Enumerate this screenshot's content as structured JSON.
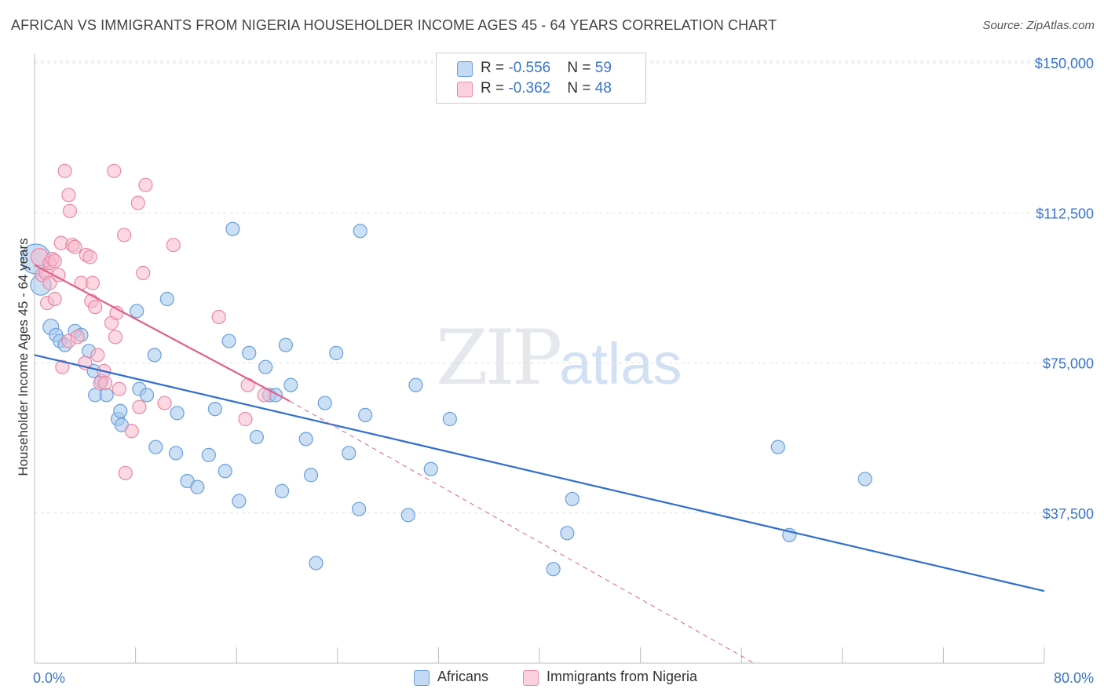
{
  "header": {
    "title": "AFRICAN VS IMMIGRANTS FROM NIGERIA HOUSEHOLDER INCOME AGES 45 - 64 YEARS CORRELATION CHART",
    "source": "Source: ZipAtlas.com"
  },
  "watermark": {
    "zip": "ZIP",
    "atlas": "atlas"
  },
  "legend": {
    "africans": {
      "r_label": "R = ",
      "r_value": "-0.556",
      "n_label": "N = ",
      "n_value": "59"
    },
    "nigeria": {
      "r_label": "R = ",
      "r_value": "-0.362",
      "n_label": "N = ",
      "n_value": "48"
    }
  },
  "bottom_legend": {
    "africans": "Africans",
    "nigeria": "Immigrants from Nigeria"
  },
  "colors": {
    "africans_fill": "#a9c9ef",
    "africans_stroke": "#6a9fdc",
    "africans_line": "#2f6fcc",
    "nigeria_fill": "#f7b8cb",
    "nigeria_stroke": "#e88aa6",
    "nigeria_line": "#e0608a",
    "axis_label": "#3a74c8",
    "grid": "#dde1e6"
  },
  "chart_data": {
    "type": "scatter",
    "title": "AFRICAN VS IMMIGRANTS FROM NIGERIA HOUSEHOLDER INCOME AGES 45 - 64 YEARS CORRELATION CHART",
    "xlabel": "",
    "ylabel": "Householder Income Ages 45 - 64 years",
    "xlim": [
      0,
      80
    ],
    "ylim": [
      0,
      152000
    ],
    "x_tick_labels": [
      "0.0%",
      "80.0%"
    ],
    "y_ticks": [
      37500,
      75000,
      112500,
      150000
    ],
    "y_tick_labels": [
      "$37,500",
      "$75,000",
      "$112,500",
      "$150,000"
    ],
    "grid": true,
    "legend_position": "top-center",
    "series": [
      {
        "name": "Africans",
        "r": -0.556,
        "n": 59,
        "points": [
          [
            0.1,
            101000
          ],
          [
            0.5,
            94500
          ],
          [
            1.3,
            84000
          ],
          [
            1.7,
            82000
          ],
          [
            2.0,
            80500
          ],
          [
            2.4,
            79500
          ],
          [
            3.2,
            83000
          ],
          [
            3.7,
            82000
          ],
          [
            4.3,
            78000
          ],
          [
            4.7,
            73000
          ],
          [
            4.8,
            67000
          ],
          [
            5.3,
            70500
          ],
          [
            5.7,
            67000
          ],
          [
            6.6,
            61000
          ],
          [
            6.9,
            59500
          ],
          [
            6.8,
            63000
          ],
          [
            8.1,
            88000
          ],
          [
            8.3,
            68500
          ],
          [
            8.9,
            67000
          ],
          [
            9.5,
            77000
          ],
          [
            9.6,
            54000
          ],
          [
            10.5,
            91000
          ],
          [
            11.3,
            62500
          ],
          [
            11.2,
            52500
          ],
          [
            12.1,
            45500
          ],
          [
            12.9,
            44000
          ],
          [
            13.8,
            52000
          ],
          [
            14.3,
            63500
          ],
          [
            15.1,
            48000
          ],
          [
            15.4,
            80500
          ],
          [
            16.2,
            40500
          ],
          [
            15.7,
            108500
          ],
          [
            17.0,
            77500
          ],
          [
            17.6,
            56500
          ],
          [
            18.3,
            74000
          ],
          [
            18.6,
            67000
          ],
          [
            19.1,
            67000
          ],
          [
            19.6,
            43000
          ],
          [
            19.9,
            79500
          ],
          [
            20.3,
            69500
          ],
          [
            21.5,
            56000
          ],
          [
            21.9,
            47000
          ],
          [
            22.3,
            25000
          ],
          [
            23.0,
            65000
          ],
          [
            23.9,
            77500
          ],
          [
            24.9,
            52500
          ],
          [
            25.7,
            38500
          ],
          [
            25.8,
            108000
          ],
          [
            26.2,
            62000
          ],
          [
            29.6,
            37000
          ],
          [
            30.2,
            69500
          ],
          [
            31.4,
            48500
          ],
          [
            32.9,
            61000
          ],
          [
            41.1,
            23500
          ],
          [
            42.2,
            32500
          ],
          [
            42.6,
            41000
          ],
          [
            58.9,
            54000
          ],
          [
            59.8,
            32000
          ],
          [
            65.8,
            46000
          ]
        ]
      },
      {
        "name": "Immigrants from Nigeria",
        "r": -0.362,
        "n": 48,
        "points": [
          [
            0.4,
            101500
          ],
          [
            0.6,
            97000
          ],
          [
            0.9,
            97500
          ],
          [
            1.0,
            90000
          ],
          [
            1.2,
            95000
          ],
          [
            1.2,
            100000
          ],
          [
            1.4,
            101000
          ],
          [
            1.6,
            100500
          ],
          [
            1.6,
            91000
          ],
          [
            1.9,
            97000
          ],
          [
            2.1,
            105000
          ],
          [
            2.2,
            74000
          ],
          [
            2.4,
            123000
          ],
          [
            2.7,
            80500
          ],
          [
            2.7,
            117000
          ],
          [
            2.8,
            113000
          ],
          [
            3.0,
            104500
          ],
          [
            3.2,
            104000
          ],
          [
            3.4,
            81500
          ],
          [
            3.7,
            95000
          ],
          [
            4.0,
            75000
          ],
          [
            4.1,
            102000
          ],
          [
            4.4,
            101500
          ],
          [
            4.6,
            95000
          ],
          [
            4.5,
            90500
          ],
          [
            4.8,
            89000
          ],
          [
            5.0,
            77000
          ],
          [
            5.2,
            70000
          ],
          [
            5.5,
            73000
          ],
          [
            5.6,
            70000
          ],
          [
            6.1,
            85000
          ],
          [
            6.3,
            123000
          ],
          [
            6.4,
            81500
          ],
          [
            6.5,
            87500
          ],
          [
            6.7,
            68500
          ],
          [
            7.1,
            107000
          ],
          [
            7.2,
            47500
          ],
          [
            7.7,
            58000
          ],
          [
            8.2,
            115000
          ],
          [
            8.3,
            64000
          ],
          [
            8.6,
            97500
          ],
          [
            8.8,
            119500
          ],
          [
            10.3,
            65000
          ],
          [
            11.0,
            104500
          ],
          [
            14.6,
            86500
          ],
          [
            16.7,
            61000
          ],
          [
            16.9,
            69500
          ],
          [
            18.2,
            67000
          ]
        ]
      }
    ],
    "trend_lines": [
      {
        "series": "Africans",
        "x": [
          0,
          80
        ],
        "y": [
          77000,
          18000
        ],
        "style": "solid"
      },
      {
        "series": "Immigrants from Nigeria",
        "x": [
          0,
          20.2
        ],
        "y": [
          99500,
          65500
        ],
        "style": "solid"
      },
      {
        "series": "Immigrants from Nigeria",
        "x": [
          20.2,
          57
        ],
        "y": [
          65500,
          0
        ],
        "style": "dashed"
      }
    ]
  }
}
